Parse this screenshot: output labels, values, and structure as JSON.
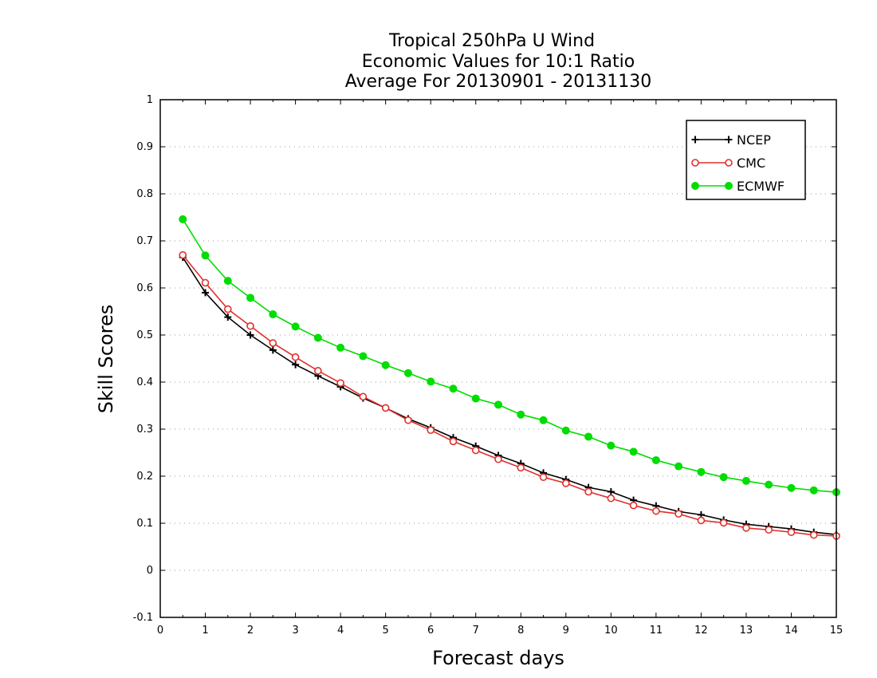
{
  "chart_data": {
    "type": "line",
    "title_lines": [
      "Tropical 250hPa U Wind",
      "Economic Values for 10:1 Ratio",
      "Average For 20130901 - 20131130"
    ],
    "xlabel": "Forecast days",
    "ylabel": "Skill Scores",
    "xlim": [
      0,
      15
    ],
    "ylim": [
      -0.1,
      1
    ],
    "xticks": [
      0,
      1,
      2,
      3,
      4,
      5,
      6,
      7,
      8,
      9,
      10,
      11,
      12,
      13,
      14,
      15
    ],
    "xtick_labels": [
      "0",
      "1",
      "2",
      "3",
      "4",
      "5",
      "6",
      "7",
      "8",
      "9",
      "10",
      "11",
      "12",
      "13",
      "14",
      "15"
    ],
    "yticks": [
      -0.1,
      0,
      0.1,
      0.2,
      0.3,
      0.4,
      0.5,
      0.6,
      0.7,
      0.8,
      0.9,
      1
    ],
    "ytick_labels": [
      "-0.1",
      "0",
      "0.1",
      "0.2",
      "0.3",
      "0.4",
      "0.5",
      "0.6",
      "0.7",
      "0.8",
      "0.9",
      "1"
    ],
    "grid": "horizontal dotted",
    "legend_position": "top-right",
    "x": [
      0.5,
      1,
      1.5,
      2,
      2.5,
      3,
      3.5,
      4,
      4.5,
      5,
      5.5,
      6,
      6.5,
      7,
      7.5,
      8,
      8.5,
      9,
      9.5,
      10,
      10.5,
      11,
      11.5,
      12,
      12.5,
      13,
      13.5,
      14,
      14.5,
      15
    ],
    "series": [
      {
        "name": "NCEP",
        "color": "#000000",
        "marker": "plus",
        "values": [
          0.665,
          0.59,
          0.538,
          0.5,
          0.468,
          0.437,
          0.413,
          0.39,
          0.366,
          0.345,
          0.322,
          0.303,
          0.282,
          0.264,
          0.244,
          0.227,
          0.207,
          0.193,
          0.176,
          0.167,
          0.149,
          0.137,
          0.125,
          0.118,
          0.107,
          0.098,
          0.093,
          0.088,
          0.081,
          0.076
        ]
      },
      {
        "name": "CMC",
        "color": "#e0302c",
        "marker": "open-circle",
        "values": [
          0.67,
          0.611,
          0.555,
          0.519,
          0.483,
          0.453,
          0.424,
          0.398,
          0.369,
          0.345,
          0.319,
          0.298,
          0.274,
          0.255,
          0.236,
          0.218,
          0.198,
          0.185,
          0.167,
          0.153,
          0.138,
          0.126,
          0.12,
          0.106,
          0.101,
          0.09,
          0.086,
          0.081,
          0.075,
          0.073
        ]
      },
      {
        "name": "ECMWF",
        "color": "#00dd00",
        "marker": "filled-circle",
        "values": [
          0.746,
          0.669,
          0.615,
          0.579,
          0.544,
          0.518,
          0.494,
          0.473,
          0.455,
          0.436,
          0.419,
          0.401,
          0.386,
          0.365,
          0.352,
          0.331,
          0.319,
          0.297,
          0.284,
          0.265,
          0.252,
          0.234,
          0.221,
          0.209,
          0.198,
          0.19,
          0.182,
          0.175,
          0.17,
          0.166
        ]
      }
    ]
  }
}
